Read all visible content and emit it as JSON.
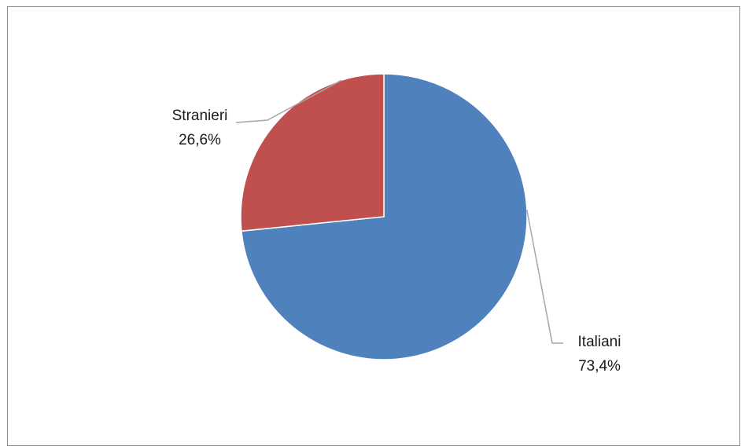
{
  "chart_data": {
    "type": "pie",
    "title": "",
    "slices": [
      {
        "label": "Italiani",
        "value": 73.4,
        "value_label": "73,4%",
        "color": "#4F81BD"
      },
      {
        "label": "Stranieri",
        "value": 26.6,
        "value_label": "26,6%",
        "color": "#C0504D"
      }
    ],
    "start_angle": "12 o'clock, clockwise",
    "legend": "none",
    "data_labels": "outside with leader lines"
  }
}
